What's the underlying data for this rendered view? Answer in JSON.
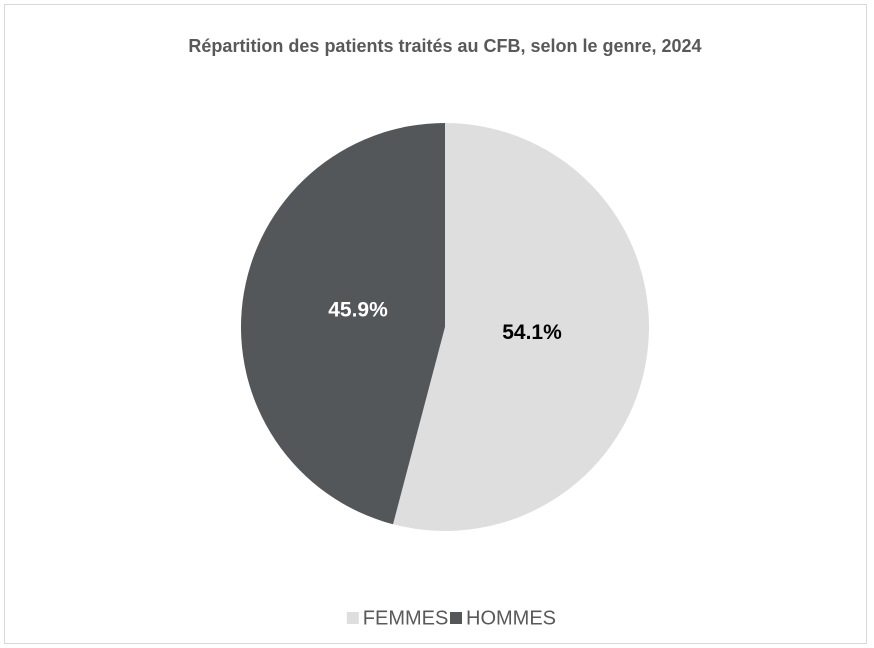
{
  "chart_data": {
    "type": "pie",
    "title": "Répartition des patients traités au CFB, selon le genre, 2024",
    "categories": [
      "FEMMES",
      "HOMMES"
    ],
    "values": [
      54.1,
      45.9
    ],
    "value_labels": [
      "54.1%",
      "45.9%"
    ],
    "colors": [
      "#dedede",
      "#545759"
    ],
    "label_colors": [
      "#000000",
      "#ffffff"
    ],
    "legend": "bottom"
  }
}
